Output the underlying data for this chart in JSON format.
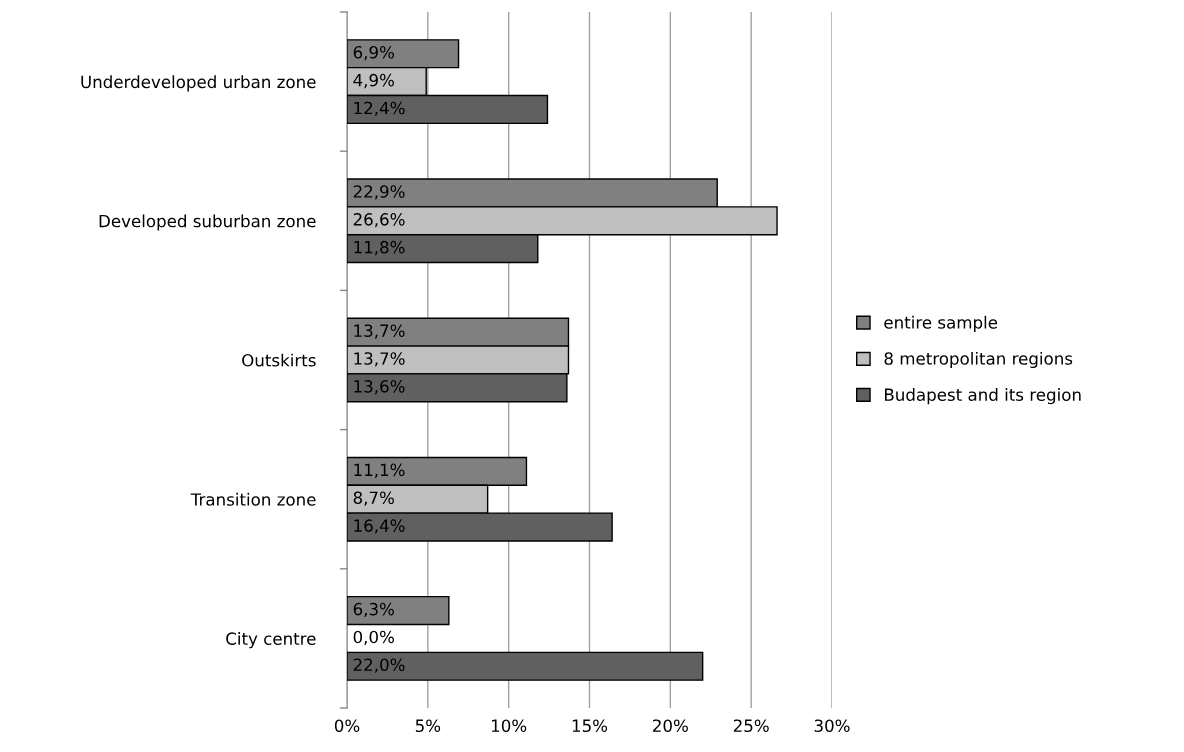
{
  "chart_data": {
    "type": "bar",
    "orientation": "horizontal",
    "categories": [
      "Underdeveloped urban zone",
      "Developed suburban zone",
      "Outskirts",
      "Transition zone",
      "City centre"
    ],
    "series": [
      {
        "name": "entire sample",
        "color": "#808080",
        "values": [
          6.9,
          22.9,
          13.7,
          11.1,
          6.3
        ],
        "value_labels": [
          "6,9%",
          "22,9%",
          "13,7%",
          "11,1%",
          "6,3%"
        ]
      },
      {
        "name": "8 metropolitan regions",
        "color": "#bfbfbf",
        "values": [
          4.9,
          26.6,
          13.7,
          8.7,
          0.0
        ],
        "value_labels": [
          "4,9%",
          "26,6%",
          "13,7%",
          "8,7%",
          "0,0%"
        ]
      },
      {
        "name": "Budapest and its region",
        "color": "#606060",
        "values": [
          12.4,
          11.8,
          13.6,
          16.4,
          22.0
        ],
        "value_labels": [
          "12,4%",
          "11,8%",
          "13,6%",
          "16,4%",
          "22,0%"
        ]
      }
    ],
    "xlim": [
      0,
      30
    ],
    "xticks": [
      {
        "value": 0,
        "label": "0%"
      },
      {
        "value": 5,
        "label": "5%"
      },
      {
        "value": 10,
        "label": "10%"
      },
      {
        "value": 15,
        "label": "15%"
      },
      {
        "value": 20,
        "label": "20%"
      },
      {
        "value": 25,
        "label": "25%"
      },
      {
        "value": 30,
        "label": "30%"
      }
    ],
    "grid": "x",
    "legend": "right"
  }
}
